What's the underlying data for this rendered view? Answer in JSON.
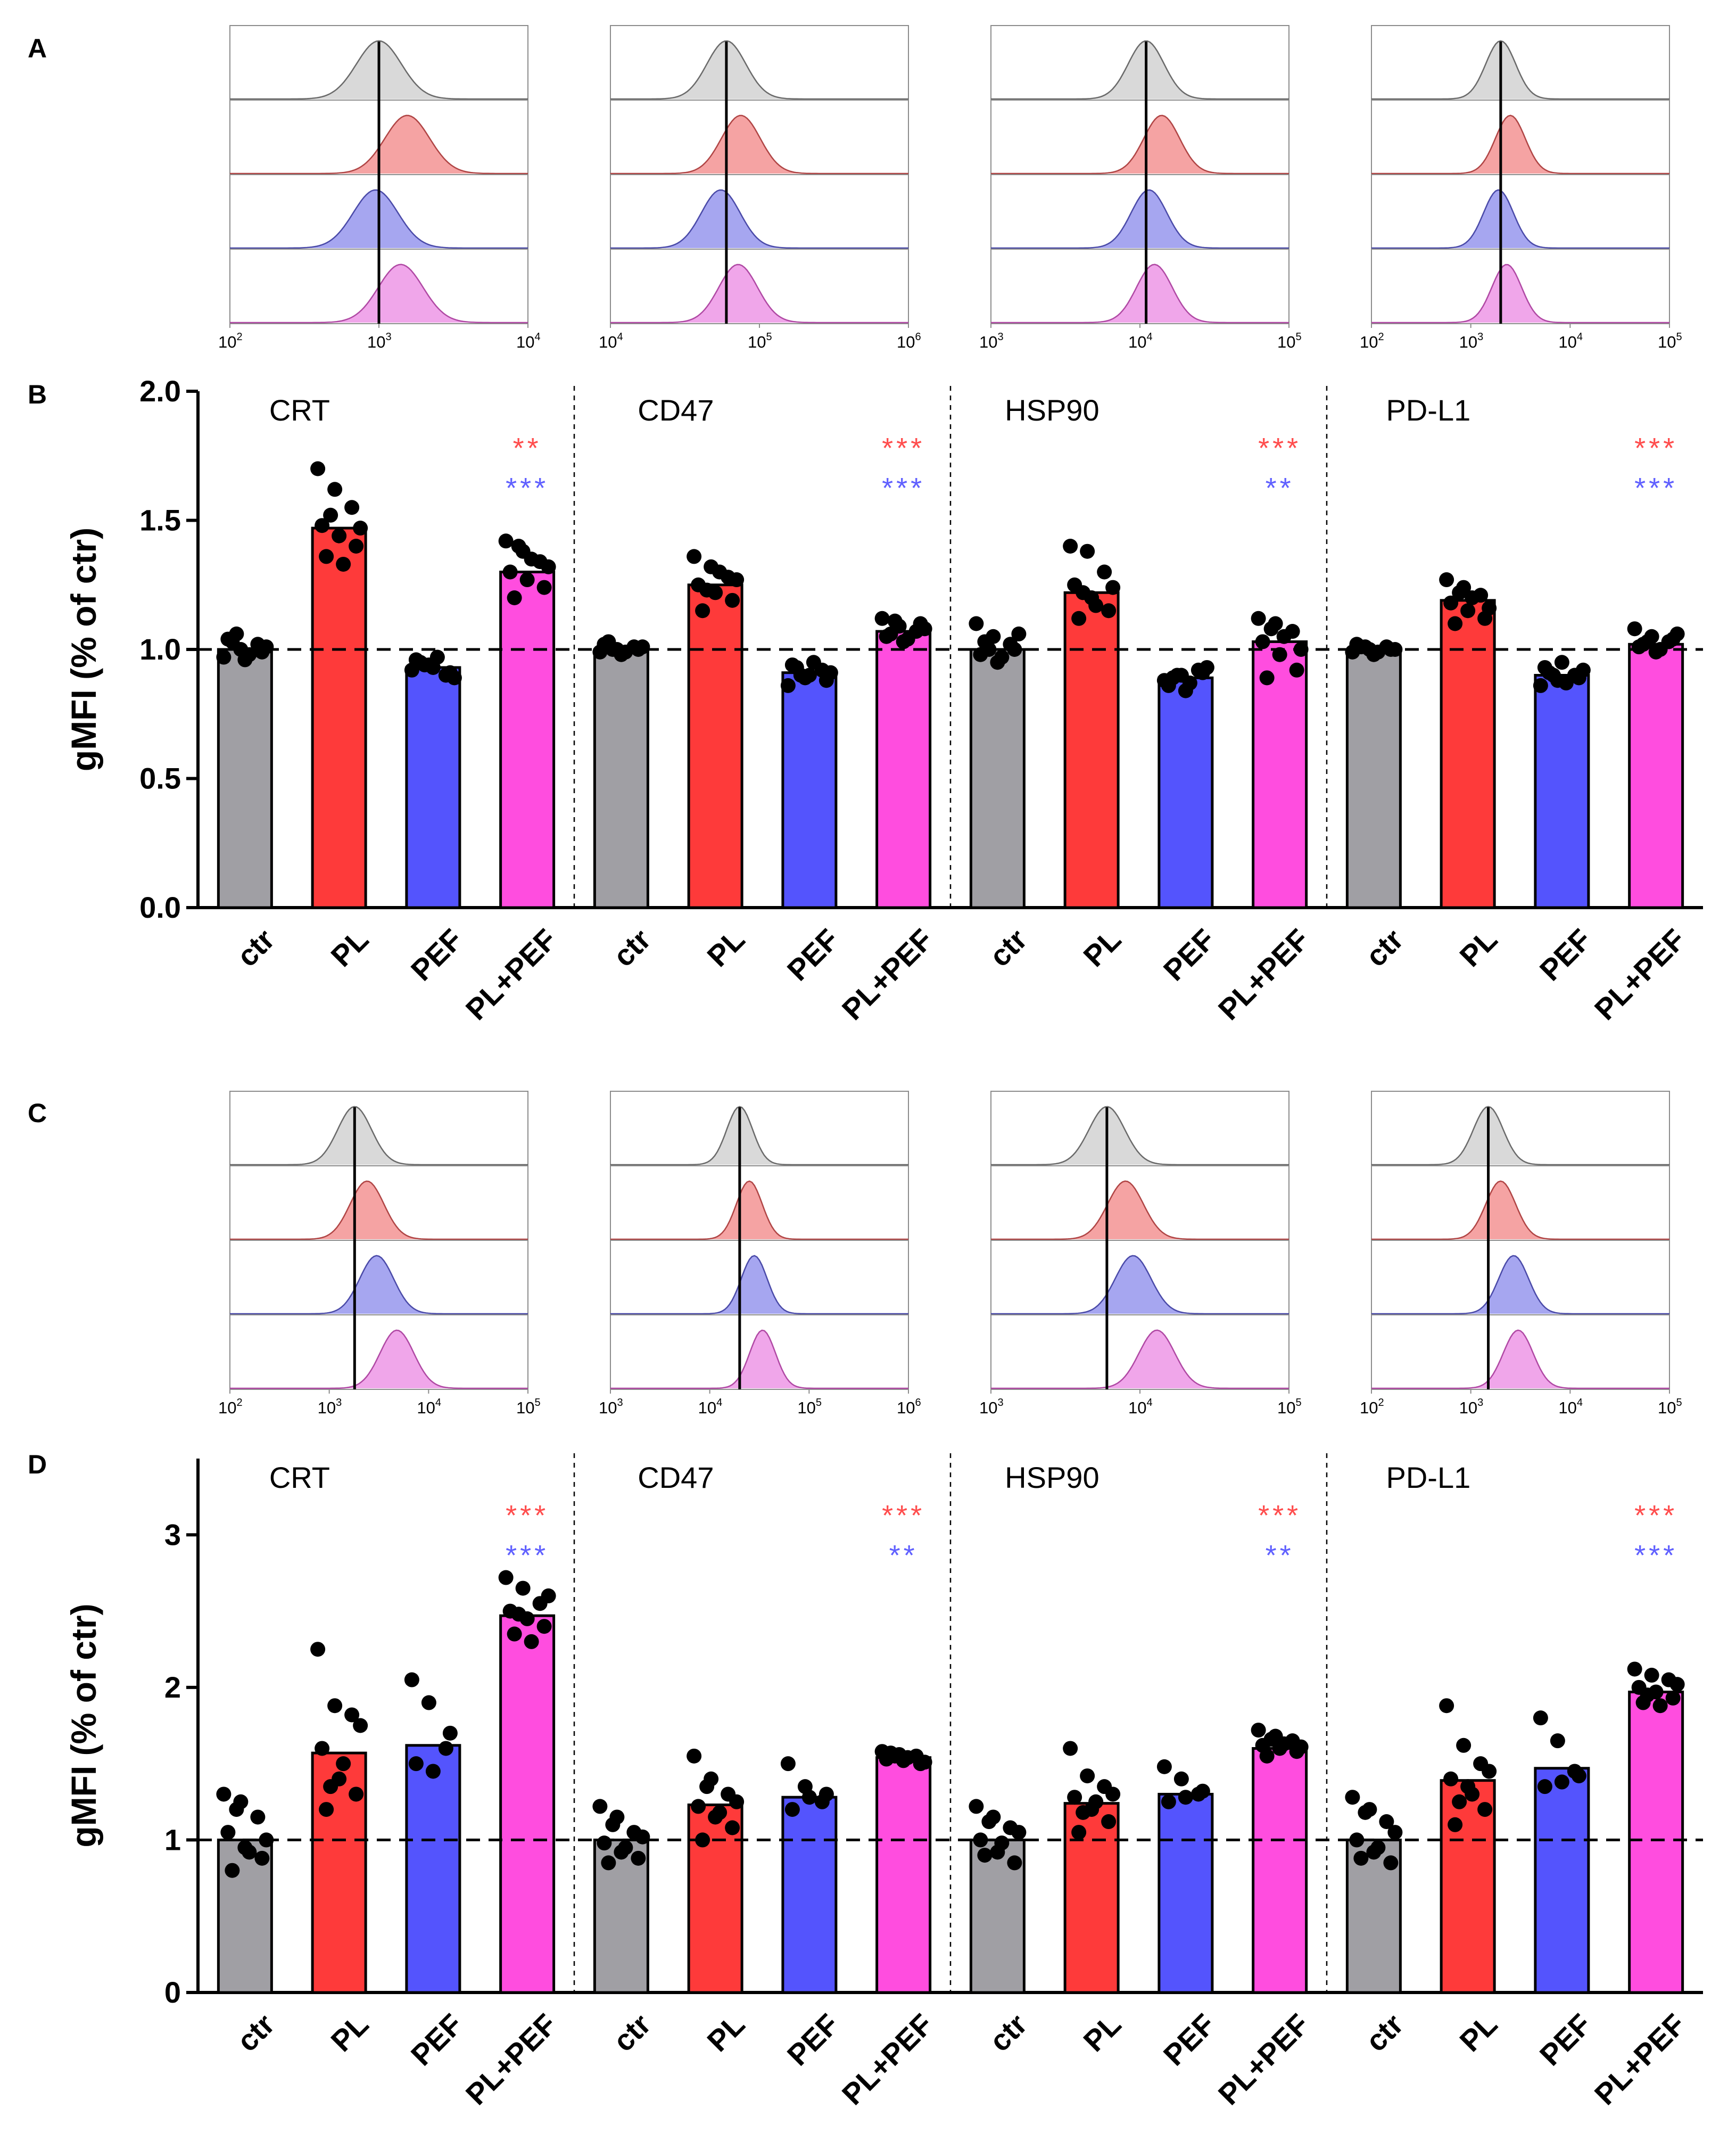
{
  "panel_labels": [
    "A",
    "B",
    "C",
    "D"
  ],
  "markers": [
    "CRT",
    "CD47",
    "HSP90",
    "PD-L1"
  ],
  "categories": [
    "ctr",
    "PL",
    "PEF",
    "PL+PEF"
  ],
  "colors": {
    "ctr": "#a09fa4",
    "PL": "#fe3a3a",
    "PEF": "#5454fd",
    "PL+PEF": "#ff4ddf",
    "sig_PL": "#ff4d4d",
    "sig_PEF": "#6060ff",
    "hist_fill": [
      "#d9d9d9",
      "#f5a3a3",
      "#a6a6f0",
      "#f0a6ea"
    ]
  },
  "histograms": {
    "A": [
      {
        "marker": "CRT",
        "axis_exponents": [
          "2",
          "3",
          "4"
        ],
        "ref_value": 1000,
        "peaks": [
          1000,
          1550,
          950,
          1400
        ],
        "width": 0.15
      },
      {
        "marker": "CD47",
        "axis_exponents": [
          "4",
          "5",
          "6"
        ],
        "ref_value": 60000,
        "peaks": [
          60000,
          75000,
          55000,
          72000
        ],
        "width": 0.13
      },
      {
        "marker": "HSP90",
        "axis_exponents": [
          "3",
          "4",
          "5"
        ],
        "ref_value": 11000,
        "peaks": [
          11000,
          14000,
          11500,
          12500
        ],
        "width": 0.12
      },
      {
        "marker": "PD-L1",
        "axis_exponents": [
          "2",
          "3",
          "4",
          "5"
        ],
        "ref_value": 2000,
        "peaks": [
          2000,
          2500,
          1900,
          2300
        ],
        "width": 0.15
      }
    ],
    "C": [
      {
        "marker": "CRT",
        "axis_exponents": [
          "2",
          "3",
          "4",
          "5"
        ],
        "ref_value": 1800,
        "peaks": [
          1800,
          2400,
          3000,
          4800
        ],
        "width": 0.17
      },
      {
        "marker": "CD47",
        "axis_exponents": [
          "3",
          "4",
          "5",
          "6"
        ],
        "ref_value": 20000,
        "peaks": [
          20000,
          25000,
          28000,
          34000
        ],
        "width": 0.13
      },
      {
        "marker": "HSP90",
        "axis_exponents": [
          "3",
          "4",
          "5"
        ],
        "ref_value": 6000,
        "peaks": [
          6000,
          8000,
          9000,
          13000
        ],
        "width": 0.12
      },
      {
        "marker": "PD-L1",
        "axis_exponents": [
          "2",
          "3",
          "4",
          "5"
        ],
        "ref_value": 1500,
        "peaks": [
          1500,
          2000,
          2700,
          3000
        ],
        "width": 0.15
      }
    ]
  },
  "chart_data": [
    {
      "panel": "B",
      "type": "bar",
      "ylabel": "gMFI (% of ctr)",
      "ylim": [
        0,
        2.0
      ],
      "yticks": [
        "0.0",
        "0.5",
        "1.0",
        "1.5",
        "2.0"
      ],
      "reference_line": 1.0,
      "groups": [
        {
          "title": "CRT",
          "values": [
            1.0,
            1.47,
            0.93,
            1.3
          ],
          "sig_PL": "**",
          "sig_PEF": "***",
          "points": [
            [
              0.97,
              1.0,
              1.02,
              1.04,
              0.96,
              0.99,
              1.03,
              0.98,
              1.01,
              1.06
            ],
            [
              1.7,
              1.62,
              1.55,
              1.48,
              1.44,
              1.4,
              1.36,
              1.33,
              1.47,
              1.52
            ],
            [
              0.92,
              0.94,
              0.9,
              0.96,
              0.93,
              0.91,
              0.95,
              0.97,
              0.89,
              0.94
            ],
            [
              1.42,
              1.38,
              1.34,
              1.3,
              1.27,
              1.24,
              1.2,
              1.35,
              1.32,
              1.4
            ]
          ]
        },
        {
          "title": "CD47",
          "values": [
            1.0,
            1.25,
            0.91,
            1.07
          ],
          "sig_PL": "***",
          "sig_PEF": "***",
          "points": [
            [
              0.99,
              1.0,
              1.01,
              1.02,
              0.98,
              1.0,
              1.03,
              0.99,
              1.01,
              1.0
            ],
            [
              1.36,
              1.32,
              1.28,
              1.25,
              1.22,
              1.19,
              1.15,
              1.3,
              1.27,
              1.23
            ],
            [
              0.86,
              0.89,
              0.92,
              0.94,
              0.9,
              0.88,
              0.93,
              0.95,
              0.91,
              0.9
            ],
            [
              1.12,
              1.09,
              1.07,
              1.05,
              1.03,
              1.1,
              1.06,
              1.04,
              1.08,
              1.11
            ]
          ]
        },
        {
          "title": "HSP90",
          "values": [
            1.0,
            1.22,
            0.89,
            1.03
          ],
          "sig_PL": "***",
          "sig_PEF": "**",
          "points": [
            [
              1.1,
              1.05,
              1.02,
              0.98,
              0.95,
              1.0,
              1.03,
              0.97,
              1.06,
              1.0
            ],
            [
              1.4,
              1.38,
              1.3,
              1.25,
              1.2,
              1.15,
              1.12,
              1.17,
              1.24,
              1.22
            ],
            [
              0.88,
              0.9,
              0.92,
              0.86,
              0.84,
              0.91,
              0.89,
              0.87,
              0.93,
              0.9
            ],
            [
              1.12,
              1.1,
              1.07,
              1.03,
              0.98,
              0.92,
              0.89,
              1.05,
              1.0,
              1.08
            ]
          ]
        },
        {
          "title": "PD-L1",
          "values": [
            1.0,
            1.19,
            0.9,
            1.02
          ],
          "sig_PL": "***",
          "sig_PEF": "***",
          "points": [
            [
              0.99,
              1.0,
              1.01,
              1.02,
              0.98,
              1.0,
              1.01,
              0.99,
              1.0,
              1.01
            ],
            [
              1.27,
              1.24,
              1.21,
              1.18,
              1.15,
              1.12,
              1.1,
              1.2,
              1.16,
              1.22
            ],
            [
              0.86,
              0.88,
              0.9,
              0.93,
              0.95,
              0.89,
              0.91,
              0.87,
              0.92,
              0.9
            ],
            [
              1.08,
              1.05,
              1.03,
              1.01,
              0.99,
              1.04,
              1.02,
              1.0,
              1.06,
              1.03
            ]
          ]
        }
      ]
    },
    {
      "panel": "D",
      "type": "bar",
      "ylabel": "gMFI (% of ctr)",
      "ylim": [
        0,
        3.5
      ],
      "yticks": [
        "0",
        "1",
        "2",
        "3"
      ],
      "reference_line": 1.0,
      "groups": [
        {
          "title": "CRT",
          "values": [
            1.0,
            1.57,
            1.62,
            2.47
          ],
          "sig_PL": "***",
          "sig_PEF": "***",
          "points": [
            [
              1.3,
              1.25,
              1.15,
              1.05,
              0.95,
              0.88,
              0.8,
              0.92,
              1.0,
              1.2
            ],
            [
              2.25,
              1.88,
              1.82,
              1.6,
              1.4,
              1.3,
              1.2,
              1.5,
              1.75,
              1.35
            ],
            [
              2.05,
              1.9,
              1.6,
              1.5,
              1.45,
              1.7
            ],
            [
              2.72,
              2.65,
              2.55,
              2.5,
              2.45,
              2.4,
              2.35,
              2.3,
              2.6,
              2.48
            ]
          ]
        },
        {
          "title": "CD47",
          "values": [
            1.0,
            1.23,
            1.28,
            1.54
          ],
          "sig_PL": "***",
          "sig_PEF": "**",
          "points": [
            [
              1.22,
              1.15,
              1.05,
              0.98,
              0.92,
              0.88,
              0.85,
              0.95,
              1.02,
              1.1
            ],
            [
              1.55,
              1.4,
              1.3,
              1.22,
              1.15,
              1.08,
              1.0,
              1.18,
              1.25,
              1.35
            ],
            [
              1.5,
              1.35,
              1.25,
              1.2,
              1.28,
              1.3
            ],
            [
              1.58,
              1.56,
              1.55,
              1.53,
              1.52,
              1.5,
              1.57,
              1.54,
              1.51,
              1.55
            ]
          ]
        },
        {
          "title": "HSP90",
          "values": [
            1.0,
            1.24,
            1.3,
            1.6
          ],
          "sig_PL": "***",
          "sig_PEF": "**",
          "points": [
            [
              1.22,
              1.15,
              1.08,
              1.0,
              0.92,
              0.85,
              0.9,
              0.98,
              1.05,
              1.12
            ],
            [
              1.6,
              1.42,
              1.35,
              1.28,
              1.2,
              1.12,
              1.05,
              1.25,
              1.3,
              1.18
            ],
            [
              1.48,
              1.4,
              1.3,
              1.25,
              1.28,
              1.32
            ],
            [
              1.72,
              1.68,
              1.65,
              1.62,
              1.6,
              1.58,
              1.55,
              1.63,
              1.61,
              1.66
            ]
          ]
        },
        {
          "title": "PD-L1",
          "values": [
            1.0,
            1.39,
            1.47,
            1.97
          ],
          "sig_PL": "***",
          "sig_PEF": "***",
          "points": [
            [
              1.28,
              1.2,
              1.12,
              1.0,
              0.92,
              0.85,
              0.88,
              0.95,
              1.05,
              1.18
            ],
            [
              1.88,
              1.62,
              1.5,
              1.4,
              1.35,
              1.2,
              1.1,
              1.3,
              1.45,
              1.25
            ],
            [
              1.8,
              1.65,
              1.45,
              1.35,
              1.38,
              1.42
            ],
            [
              2.12,
              2.08,
              2.05,
              2.0,
              1.97,
              1.93,
              1.9,
              1.88,
              2.02,
              1.95
            ]
          ]
        }
      ]
    }
  ]
}
